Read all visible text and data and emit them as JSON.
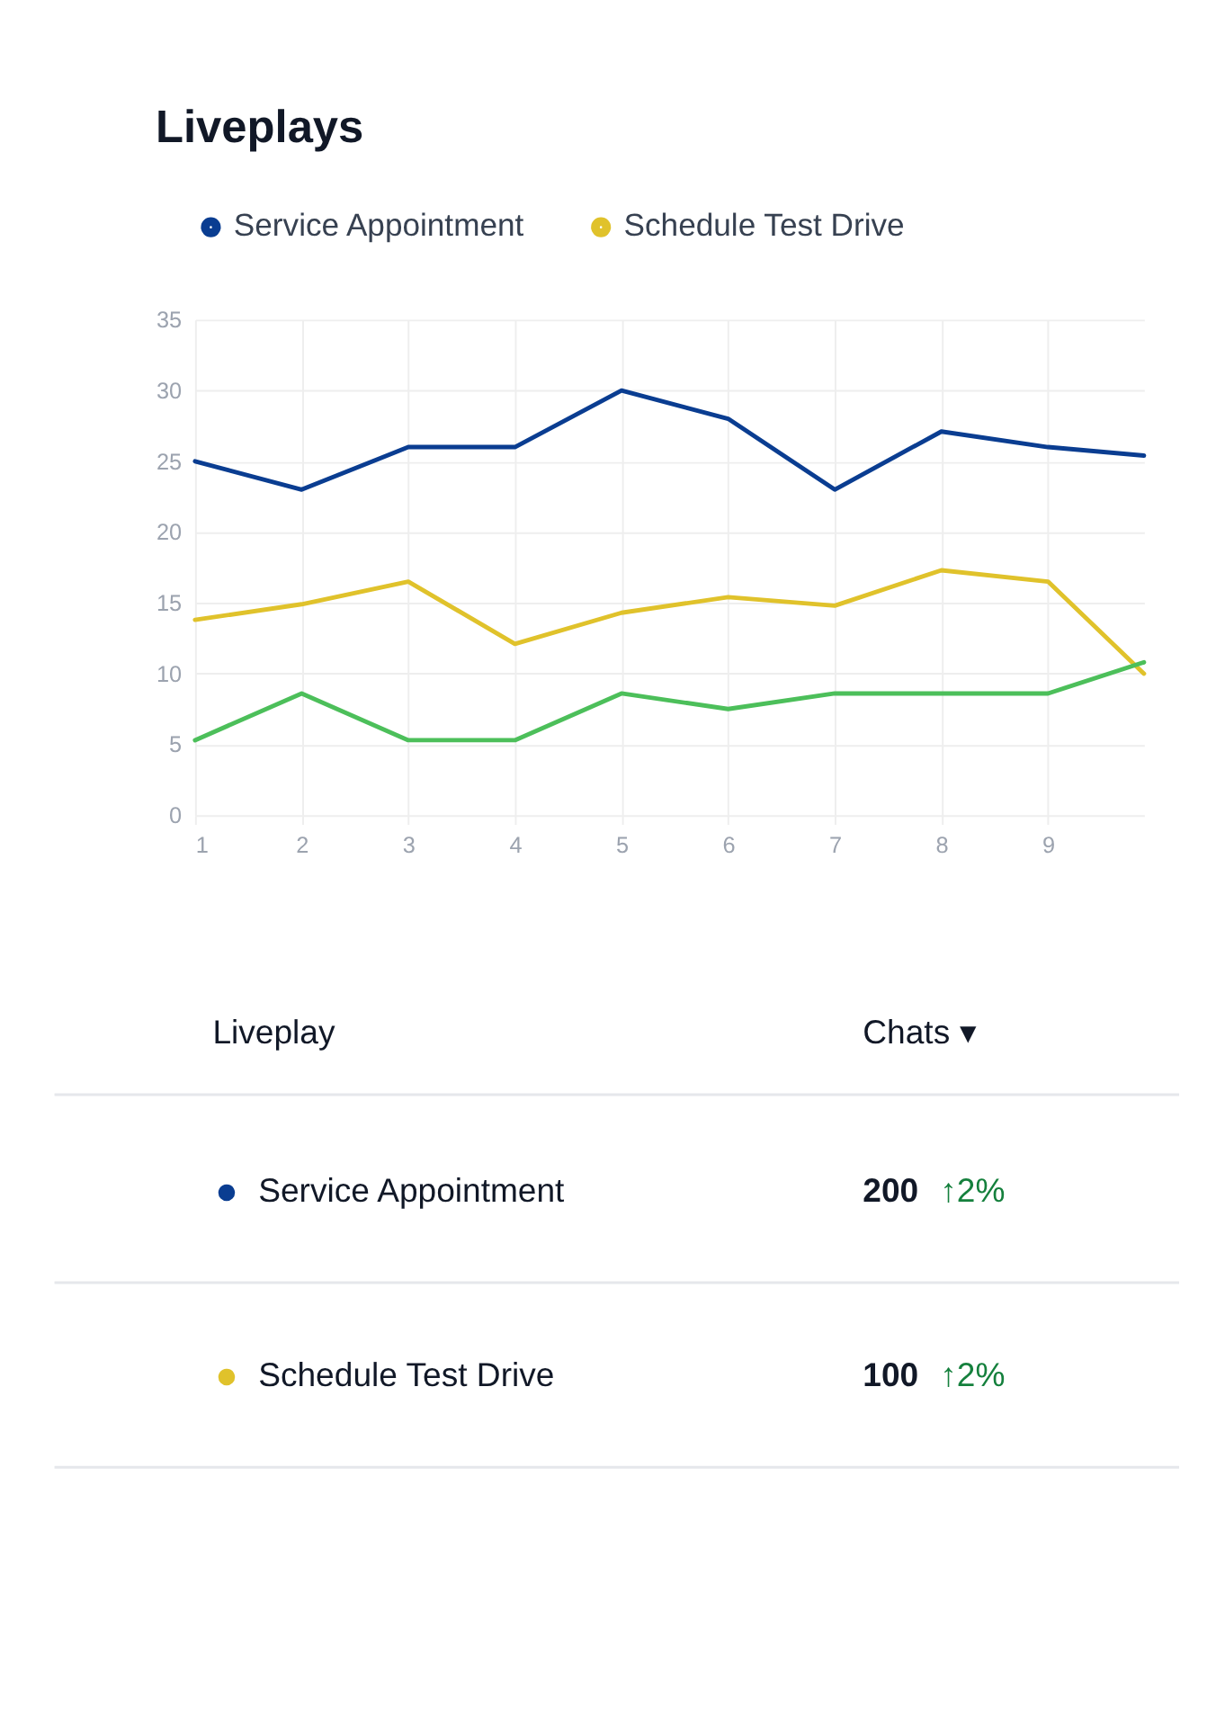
{
  "chart_data": {
    "type": "line",
    "title": "Liveplays",
    "xlim": [
      1,
      9.9
    ],
    "xticks": [
      1,
      2,
      3,
      4,
      5,
      6,
      7,
      8,
      9
    ],
    "ylim": [
      0,
      35
    ],
    "yticks": [
      0,
      5,
      10,
      15,
      20,
      25,
      30,
      35
    ],
    "grid": true,
    "legend": "top left",
    "marker": "none",
    "line_style": "solid",
    "series": [
      {
        "name": "Service Appointment",
        "color": "#0a3d91",
        "x": [
          1,
          2,
          3,
          4,
          5,
          6,
          7,
          8,
          9,
          9.9
        ],
        "values": [
          25,
          23,
          26,
          26,
          30,
          28,
          23,
          27.1,
          26,
          25.4
        ]
      },
      {
        "name": "Schedule Test Drive",
        "color": "#e0c22b",
        "x": [
          1,
          2,
          3,
          4,
          5,
          6,
          7,
          8,
          9,
          9.9
        ],
        "values": [
          13.8,
          14.9,
          16.5,
          12.1,
          14.3,
          15.4,
          14.8,
          17.3,
          16.5,
          10
        ]
      },
      {
        "color": "#4cbf5a",
        "x": [
          1,
          2,
          3,
          4,
          5,
          6,
          7,
          8,
          9,
          9.9
        ],
        "values": [
          5.3,
          8.6,
          5.3,
          5.3,
          8.6,
          7.5,
          8.6,
          8.6,
          8.6,
          10.8
        ]
      }
    ],
    "annotations": [
      "Liveplay",
      "Chats ▾",
      "●",
      "Service Appointment",
      "200",
      "↑2%",
      "●",
      "Schedule Test Drive",
      "100",
      "↑2%"
    ]
  }
}
